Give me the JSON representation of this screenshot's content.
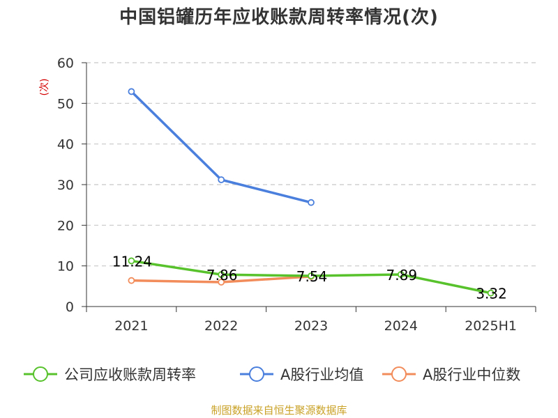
{
  "title": "中国铝罐历年应收账款周转率情况(次)",
  "source": "制图数据来自恒生聚源数据库",
  "colors": {
    "company": "#58c22c",
    "industry_avg": "#4a7fdd",
    "industry_median": "#f28c5a",
    "ylabel": "#d40000"
  },
  "chart_data": {
    "type": "line",
    "title": "中国铝罐历年应收账款周转率情况(次)",
    "xlabel": "",
    "ylabel": "(次)",
    "categories": [
      "2021",
      "2022",
      "2023",
      "2024",
      "2025H1"
    ],
    "ylim": [
      0,
      60
    ],
    "yticks": [
      0,
      10,
      20,
      30,
      40,
      50,
      60
    ],
    "grid": true,
    "legend_position": "bottom",
    "series": [
      {
        "name": "公司应收账款周转率",
        "color": "#58c22c",
        "values": [
          11.24,
          7.86,
          7.54,
          7.89,
          3.32
        ],
        "labels": [
          "11.24",
          "7.86",
          "7.54",
          "7.89",
          "3.32"
        ]
      },
      {
        "name": "A股行业均值",
        "color": "#4a7fdd",
        "values": [
          52.9,
          31.2,
          25.6,
          null,
          null
        ]
      },
      {
        "name": "A股行业中位数",
        "color": "#f28c5a",
        "values": [
          6.4,
          6.0,
          7.4,
          null,
          null
        ]
      }
    ]
  }
}
